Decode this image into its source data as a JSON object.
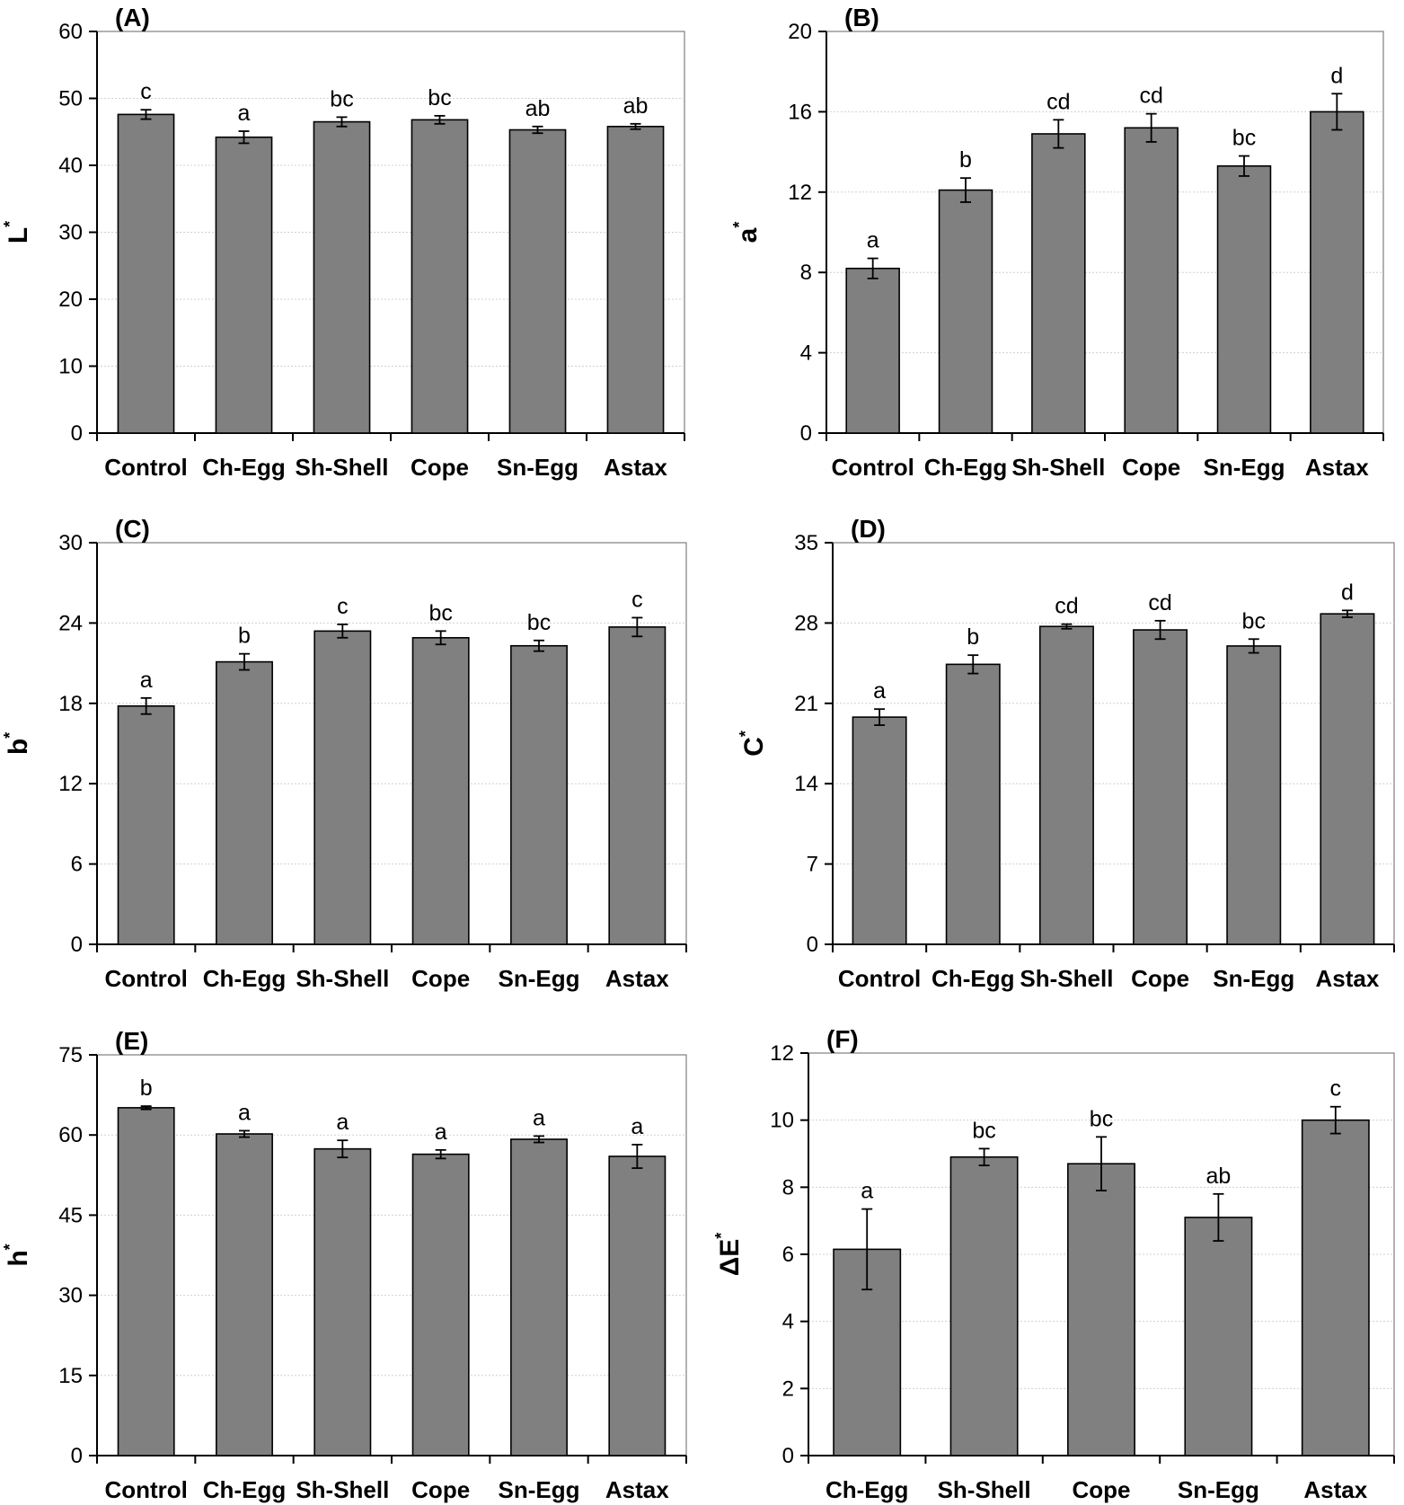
{
  "chart_data": [
    {
      "type": "bar",
      "panel_label": "(A)",
      "ylabel": "L",
      "ylabel_sup": "*",
      "ylim": [
        0,
        60
      ],
      "yticks": [
        0,
        10,
        20,
        30,
        40,
        50,
        60
      ],
      "grid": true,
      "bar_color": "#808080",
      "categories": [
        "Control",
        "Ch-Egg",
        "Sh-Shell",
        "Cope",
        "Sn-Egg",
        "Astax"
      ],
      "values": [
        47.6,
        44.2,
        46.5,
        46.8,
        45.3,
        45.8
      ],
      "errors": [
        0.7,
        0.9,
        0.7,
        0.6,
        0.5,
        0.4
      ],
      "letters": [
        "c",
        "a",
        "bc",
        "bc",
        "ab",
        "ab"
      ]
    },
    {
      "type": "bar",
      "panel_label": "(B)",
      "ylabel": "a",
      "ylabel_sup": "*",
      "ylim": [
        0,
        20
      ],
      "yticks": [
        0,
        4,
        8,
        12,
        16,
        20
      ],
      "grid": true,
      "bar_color": "#808080",
      "categories": [
        "Control",
        "Ch-Egg",
        "Sh-Shell",
        "Cope",
        "Sn-Egg",
        "Astax"
      ],
      "values": [
        8.2,
        12.1,
        14.9,
        15.2,
        13.3,
        16.0
      ],
      "errors": [
        0.5,
        0.6,
        0.7,
        0.7,
        0.5,
        0.9
      ],
      "letters": [
        "a",
        "b",
        "cd",
        "cd",
        "bc",
        "d"
      ]
    },
    {
      "type": "bar",
      "panel_label": "(C)",
      "ylabel": "b",
      "ylabel_sup": "*",
      "ylim": [
        0,
        30
      ],
      "yticks": [
        0,
        6,
        12,
        18,
        24,
        30
      ],
      "grid": true,
      "bar_color": "#808080",
      "categories": [
        "Control",
        "Ch-Egg",
        "Sh-Shell",
        "Cope",
        "Sn-Egg",
        "Astax"
      ],
      "values": [
        17.8,
        21.1,
        23.4,
        22.9,
        22.3,
        23.7
      ],
      "errors": [
        0.6,
        0.6,
        0.5,
        0.5,
        0.4,
        0.7
      ],
      "letters": [
        "a",
        "b",
        "c",
        "bc",
        "bc",
        "c"
      ]
    },
    {
      "type": "bar",
      "panel_label": "(D)",
      "ylabel": "C",
      "ylabel_sup": "*",
      "ylim": [
        0,
        35
      ],
      "yticks": [
        0,
        7,
        14,
        21,
        28,
        35
      ],
      "grid": true,
      "bar_color": "#808080",
      "categories": [
        "Control",
        "Ch-Egg",
        "Sh-Shell",
        "Cope",
        "Sn-Egg",
        "Astax"
      ],
      "values": [
        19.8,
        24.4,
        27.7,
        27.4,
        26.0,
        28.8
      ],
      "errors": [
        0.7,
        0.8,
        0.2,
        0.8,
        0.6,
        0.3
      ],
      "letters": [
        "a",
        "b",
        "cd",
        "cd",
        "bc",
        "d"
      ]
    },
    {
      "type": "bar",
      "panel_label": "(E)",
      "ylabel": "h",
      "ylabel_sup": "*",
      "ylim": [
        0,
        75
      ],
      "yticks": [
        0,
        15,
        30,
        45,
        60,
        75
      ],
      "grid": true,
      "bar_color": "#808080",
      "categories": [
        "Control",
        "Ch-Egg",
        "Sh-Shell",
        "Cope",
        "Sn-Egg",
        "Astax"
      ],
      "values": [
        65.1,
        60.2,
        57.4,
        56.4,
        59.2,
        56.0
      ],
      "errors": [
        0.3,
        0.6,
        1.6,
        0.8,
        0.6,
        2.2
      ],
      "letters": [
        "b",
        "a",
        "a",
        "a",
        "a",
        "a"
      ]
    },
    {
      "type": "bar",
      "panel_label": "(F)",
      "ylabel": "ΔE",
      "ylabel_sup": "*",
      "ylim": [
        0,
        12
      ],
      "yticks": [
        0,
        2,
        4,
        6,
        8,
        10,
        12
      ],
      "grid": true,
      "bar_color": "#808080",
      "categories": [
        "Ch-Egg",
        "Sh-Shell",
        "Cope",
        "Sn-Egg",
        "Astax"
      ],
      "values": [
        6.15,
        8.9,
        8.7,
        7.1,
        10.0
      ],
      "errors": [
        1.2,
        0.25,
        0.8,
        0.7,
        0.4
      ],
      "letters": [
        "a",
        "bc",
        "bc",
        "ab",
        "c"
      ]
    }
  ]
}
